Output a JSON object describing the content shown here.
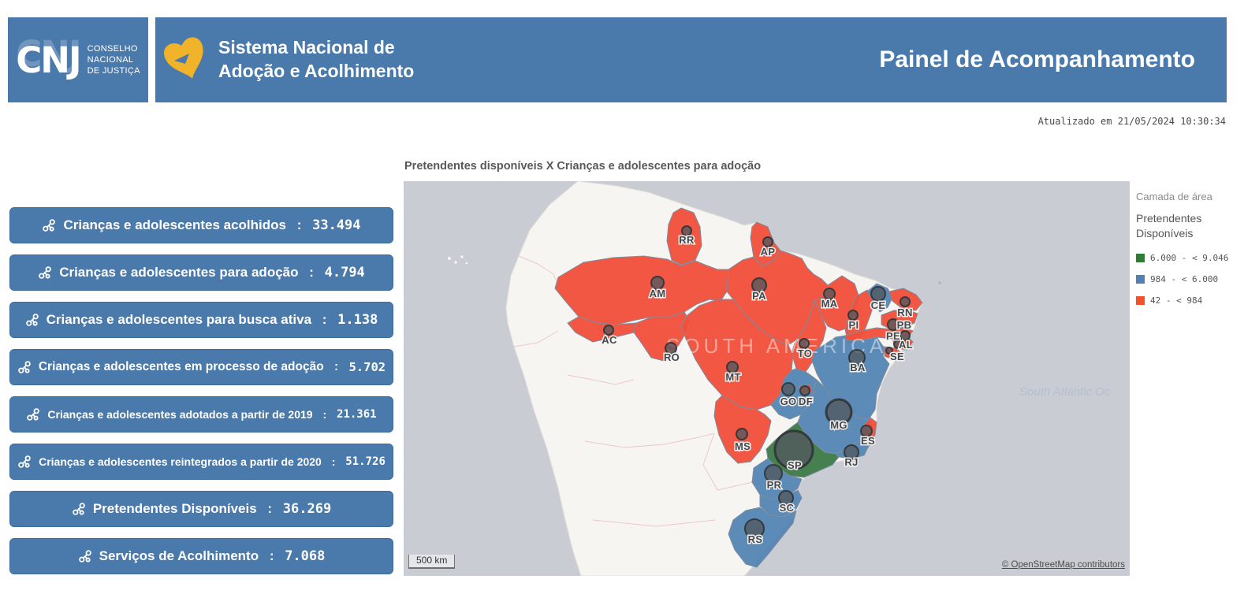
{
  "header": {
    "cnj": {
      "acronym": "CNJ",
      "org_lines": [
        "CONSELHO",
        "NACIONAL",
        "DE JUSTIÇA"
      ]
    },
    "system": {
      "line1": "Sistema Nacional de",
      "line2": "Adoção e Acolhimento"
    },
    "page_title": "Painel de Acompanhamento"
  },
  "updated_at": "Atualizado em 21/05/2024 10:30:34",
  "stats": {
    "separator": " : ",
    "items": [
      {
        "label": "Crianças e adolescentes acolhidos",
        "value": "33.494"
      },
      {
        "label": "Crianças e adolescentes para adoção",
        "value": "4.794"
      },
      {
        "label": "Crianças e adolescentes para busca ativa",
        "value": "1.138"
      },
      {
        "label": "Crianças e adolescentes em processo de adoção",
        "value": "5.702"
      },
      {
        "label": "Crianças e adolescentes adotados a partir de 2019",
        "value": "21.361"
      },
      {
        "label": "Crianças e adolescentes reintegrados a partir de 2020",
        "value": "51.726"
      },
      {
        "label": "Pretendentes Disponíveis",
        "value": "36.269"
      },
      {
        "label": "Serviços de Acolhimento",
        "value": "7.068"
      }
    ]
  },
  "map": {
    "title": "Pretendentes disponíveis X Crianças e adolescentes para adoção",
    "continent_label": "SOUTH AMERICA",
    "ocean_label": "South Atlantic Oc",
    "scale_label": "500 km",
    "attribution": "© OpenStreetMap contributors",
    "category_colors": {
      "green": "#3e7b49",
      "blue": "#5586b5",
      "red": "#f0503a"
    },
    "states": [
      {
        "code": "RR",
        "category": "red",
        "marker_size": 6
      },
      {
        "code": "AP",
        "category": "red",
        "marker_size": 6
      },
      {
        "code": "AM",
        "category": "red",
        "marker_size": 8
      },
      {
        "code": "PA",
        "category": "red",
        "marker_size": 9
      },
      {
        "code": "MA",
        "category": "red",
        "marker_size": 7
      },
      {
        "code": "PI",
        "category": "red",
        "marker_size": 6
      },
      {
        "code": "CE",
        "category": "blue",
        "marker_size": 9
      },
      {
        "code": "RN",
        "category": "red",
        "marker_size": 6
      },
      {
        "code": "PB",
        "category": "red",
        "marker_size": 7
      },
      {
        "code": "PE",
        "category": "red",
        "marker_size": 6
      },
      {
        "code": "AL",
        "category": "red",
        "marker_size": 5
      },
      {
        "code": "SE",
        "category": "red",
        "marker_size": 4
      },
      {
        "code": "TO",
        "category": "red",
        "marker_size": 6
      },
      {
        "code": "BA",
        "category": "blue",
        "marker_size": 10
      },
      {
        "code": "AC",
        "category": "red",
        "marker_size": 6
      },
      {
        "code": "RO",
        "category": "red",
        "marker_size": 7
      },
      {
        "code": "MT",
        "category": "red",
        "marker_size": 7
      },
      {
        "code": "GO",
        "category": "blue",
        "marker_size": 8
      },
      {
        "code": "DF",
        "category": "red",
        "marker_size": 6
      },
      {
        "code": "MG",
        "category": "blue",
        "marker_size": 16
      },
      {
        "code": "ES",
        "category": "red",
        "marker_size": 7
      },
      {
        "code": "MS",
        "category": "red",
        "marker_size": 7
      },
      {
        "code": "SP",
        "category": "green",
        "marker_size": 24
      },
      {
        "code": "RJ",
        "category": "blue",
        "marker_size": 9
      },
      {
        "code": "PR",
        "category": "blue",
        "marker_size": 11
      },
      {
        "code": "SC",
        "category": "blue",
        "marker_size": 9
      },
      {
        "code": "RS",
        "category": "blue",
        "marker_size": 12
      }
    ]
  },
  "legend": {
    "layer_label": "Camada de área",
    "measure_title": "Pretendentes Disponíveis",
    "items": [
      {
        "color": "#2f7d33",
        "label": "6.000 - < 9.046"
      },
      {
        "color": "#4f81b4",
        "label": "984 - < 6.000"
      },
      {
        "color": "#f2512c",
        "label": "42 - < 984"
      }
    ]
  },
  "chart_data": {
    "type": "choropleth",
    "title": "Pretendentes disponíveis X Crianças e adolescentes para adoção",
    "measure": "Pretendentes Disponíveis",
    "classes": [
      {
        "range": "6.000 - < 9.046",
        "color": "#2f7d33",
        "states": [
          "SP"
        ]
      },
      {
        "range": "984 - < 6.000",
        "color": "#4f81b4",
        "states": [
          "CE",
          "BA",
          "GO",
          "MG",
          "RJ",
          "PR",
          "SC",
          "RS"
        ]
      },
      {
        "range": "42 - < 984",
        "color": "#f2512c",
        "states": [
          "RR",
          "AP",
          "AM",
          "PA",
          "MA",
          "PI",
          "RN",
          "PB",
          "PE",
          "AL",
          "SE",
          "TO",
          "AC",
          "RO",
          "MT",
          "MS",
          "ES",
          "DF"
        ]
      }
    ],
    "kpis": [
      {
        "label": "Crianças e adolescentes acolhidos",
        "value": 33494
      },
      {
        "label": "Crianças e adolescentes para adoção",
        "value": 4794
      },
      {
        "label": "Crianças e adolescentes para busca ativa",
        "value": 1138
      },
      {
        "label": "Crianças e adolescentes em processo de adoção",
        "value": 5702
      },
      {
        "label": "Crianças e adolescentes adotados a partir de 2019",
        "value": 21361
      },
      {
        "label": "Crianças e adolescentes reintegrados a partir de 2020",
        "value": 51726
      },
      {
        "label": "Pretendentes Disponíveis",
        "value": 36269
      },
      {
        "label": "Serviços de Acolhimento",
        "value": 7068
      }
    ]
  }
}
